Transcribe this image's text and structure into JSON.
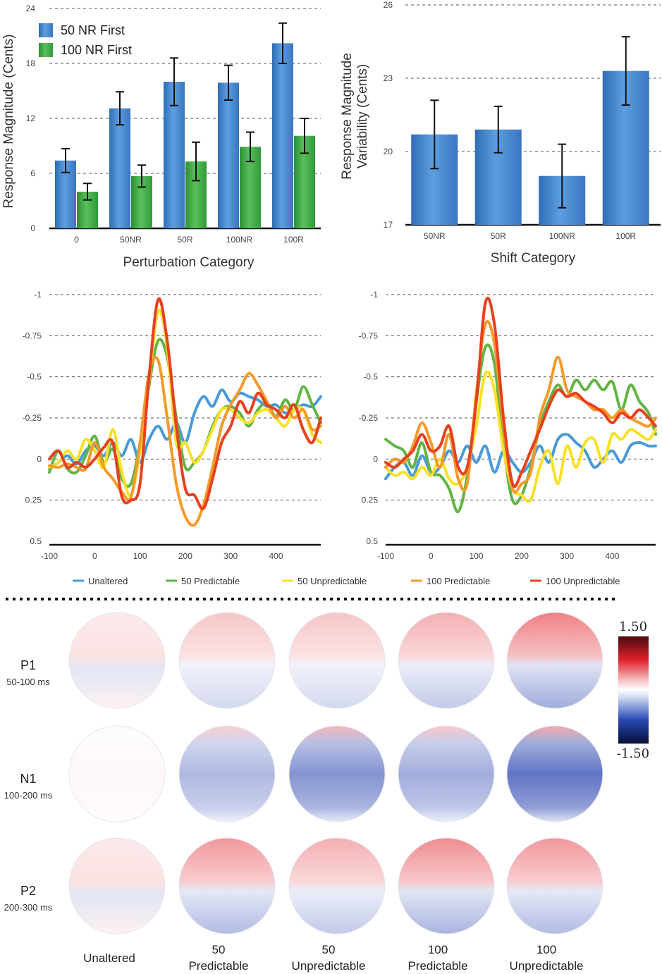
{
  "chart_data": [
    {
      "type": "bar",
      "ylabel": "Response Magnitude (Cents)",
      "xlabel": "Perturbation Category",
      "categories": [
        "0",
        "50NR",
        "50R",
        "100NR",
        "100R"
      ],
      "ylim": [
        0,
        24
      ],
      "yticks": [
        "0",
        "6",
        "12",
        "18",
        "24"
      ],
      "series": [
        {
          "name": "50 NR First",
          "color": "#3f83c8",
          "values": [
            7.4,
            13.1,
            16.0,
            15.9,
            20.2
          ],
          "errors": [
            1.3,
            1.8,
            2.6,
            1.9,
            2.2
          ]
        },
        {
          "name": "100 NR First",
          "color": "#3aa842",
          "values": [
            4.0,
            5.7,
            7.3,
            8.9,
            10.1
          ],
          "errors": [
            0.9,
            1.2,
            2.1,
            1.6,
            1.9
          ]
        }
      ],
      "grid": true,
      "legend": "top-left"
    },
    {
      "type": "bar",
      "ylabel": "Response Magnitude Variability (Cents)",
      "ylabel_lines": [
        "Response Magnitude",
        "Variability (Cents)"
      ],
      "xlabel": "Shift Category",
      "categories": [
        "50NR",
        "50R",
        "100NR",
        "100R"
      ],
      "ylim": [
        17,
        26
      ],
      "yticks": [
        "17",
        "20",
        "23",
        "26"
      ],
      "series": [
        {
          "color": "#3f83c8",
          "values": [
            20.7,
            20.9,
            19.0,
            23.3
          ],
          "errors": [
            1.4,
            0.95,
            1.3,
            1.4
          ]
        }
      ],
      "grid": true
    },
    {
      "type": "line",
      "xlim": [
        -100,
        500
      ],
      "xticks": [
        "-100",
        "0",
        "100",
        "200",
        "300",
        "400"
      ],
      "ylim": [
        -1,
        0.5
      ],
      "yticks": [
        "-1",
        "-0.75",
        "-0.5",
        "-0.25",
        "0",
        "0.25",
        "0.5"
      ],
      "y_inverted": true,
      "x": [
        -100,
        -80,
        -60,
        -40,
        -20,
        0,
        20,
        40,
        60,
        80,
        100,
        120,
        140,
        160,
        180,
        200,
        220,
        240,
        260,
        280,
        300,
        320,
        340,
        360,
        380,
        400,
        420,
        440,
        460,
        480,
        500
      ],
      "series": [
        {
          "name": "Unaltered",
          "color": "#4a9ad8",
          "values": [
            0.06,
            0.02,
            -0.02,
            0.03,
            -0.05,
            -0.08,
            -0.02,
            -0.1,
            -0.02,
            -0.12,
            0.02,
            -0.12,
            -0.2,
            -0.12,
            -0.22,
            -0.1,
            -0.28,
            -0.38,
            -0.32,
            -0.42,
            -0.35,
            -0.4,
            -0.38,
            -0.36,
            -0.32,
            -0.33,
            -0.28,
            -0.3,
            -0.33,
            -0.32,
            -0.38
          ]
        },
        {
          "name": "50 Predictable",
          "color": "#62b445",
          "values": [
            0.08,
            -0.05,
            0.06,
            0.08,
            -0.02,
            -0.14,
            0.02,
            -0.06,
            0.12,
            0.15,
            -0.1,
            -0.45,
            -0.72,
            -0.62,
            -0.25,
            0.05,
            0.02,
            -0.05,
            -0.2,
            -0.3,
            -0.32,
            -0.28,
            -0.2,
            -0.3,
            -0.34,
            -0.26,
            -0.36,
            -0.3,
            -0.44,
            -0.33,
            -0.22
          ]
        },
        {
          "name": "50 Unpredictable",
          "color": "#f8e126",
          "values": [
            0.05,
            0.02,
            -0.05,
            0.0,
            -0.12,
            -0.05,
            0.05,
            -0.18,
            0.08,
            0.22,
            -0.05,
            -0.48,
            -0.9,
            -0.68,
            -0.1,
            -0.1,
            0.02,
            -0.05,
            -0.18,
            -0.3,
            -0.3,
            -0.25,
            -0.22,
            -0.28,
            -0.3,
            -0.25,
            -0.2,
            -0.3,
            -0.3,
            -0.15,
            -0.1
          ]
        },
        {
          "name": "100 Predictable",
          "color": "#f49a2a",
          "values": [
            0.04,
            0.05,
            0.03,
            0.05,
            0.06,
            -0.1,
            0.05,
            0.12,
            0.2,
            0.23,
            -0.1,
            -0.52,
            -0.6,
            -0.25,
            0.15,
            0.35,
            0.4,
            0.28,
            0.05,
            -0.2,
            -0.33,
            -0.42,
            -0.52,
            -0.45,
            -0.35,
            -0.25,
            -0.32,
            -0.25,
            -0.3,
            -0.18,
            -0.2
          ]
        },
        {
          "name": "100 Unpredictable",
          "color": "#e8401f",
          "values": [
            0.0,
            -0.05,
            0.05,
            0.02,
            0.05,
            0.0,
            -0.07,
            -0.1,
            0.23,
            0.25,
            0.15,
            -0.5,
            -0.97,
            -0.72,
            -0.2,
            0.18,
            0.22,
            0.3,
            0.12,
            -0.1,
            -0.2,
            -0.35,
            -0.28,
            -0.4,
            -0.33,
            -0.3,
            -0.25,
            -0.33,
            -0.18,
            -0.1,
            -0.25
          ]
        }
      ],
      "grid": true
    },
    {
      "type": "line",
      "xlim": [
        -100,
        500
      ],
      "xticks": [
        "-100",
        "0",
        "100",
        "200",
        "300",
        "400"
      ],
      "ylim": [
        -1,
        0.5
      ],
      "yticks": [
        "-1",
        "-0.75",
        "-0.5",
        "-0.25",
        "0",
        "0.25",
        "0.5"
      ],
      "y_inverted": true,
      "x": [
        -100,
        -80,
        -60,
        -40,
        -20,
        0,
        20,
        40,
        60,
        80,
        100,
        120,
        140,
        160,
        180,
        200,
        220,
        240,
        260,
        280,
        300,
        320,
        340,
        360,
        380,
        400,
        420,
        440,
        460,
        480,
        500
      ],
      "series": [
        {
          "name": "Unaltered",
          "color": "#4a9ad8",
          "values": [
            0.12,
            0.05,
            0.02,
            0.1,
            -0.02,
            0.08,
            0.05,
            -0.05,
            0.02,
            -0.08,
            0.02,
            -0.08,
            0.08,
            -0.05,
            0.02,
            0.08,
            0.02,
            -0.08,
            0.02,
            -0.12,
            -0.15,
            -0.1,
            -0.05,
            0.05,
            0.0,
            -0.05,
            0.02,
            -0.08,
            -0.1,
            -0.08,
            -0.08
          ]
        },
        {
          "name": "50 Predictable",
          "color": "#62b445",
          "values": [
            -0.12,
            -0.08,
            -0.05,
            0.05,
            -0.1,
            0.08,
            0.1,
            0.18,
            0.32,
            0.1,
            -0.35,
            -0.68,
            -0.58,
            -0.08,
            0.25,
            0.22,
            0.05,
            -0.2,
            -0.35,
            -0.45,
            -0.38,
            -0.48,
            -0.42,
            -0.48,
            -0.42,
            -0.47,
            -0.3,
            -0.45,
            -0.35,
            -0.28,
            -0.15
          ]
        },
        {
          "name": "50 Unpredictable",
          "color": "#f8e126",
          "values": [
            0.05,
            0.1,
            0.08,
            0.12,
            0.05,
            0.1,
            0.0,
            0.12,
            0.15,
            0.05,
            -0.2,
            -0.52,
            -0.42,
            -0.05,
            0.18,
            0.22,
            0.25,
            0.05,
            -0.05,
            0.15,
            -0.08,
            0.05,
            -0.1,
            -0.12,
            0.02,
            -0.15,
            -0.12,
            -0.18,
            -0.15,
            -0.12,
            -0.18
          ]
        },
        {
          "name": "100 Predictable",
          "color": "#f49a2a",
          "values": [
            0.05,
            0.0,
            0.02,
            -0.08,
            -0.22,
            -0.1,
            0.05,
            -0.15,
            0.12,
            0.15,
            -0.4,
            -0.82,
            -0.7,
            -0.2,
            0.18,
            0.15,
            0.08,
            -0.25,
            -0.42,
            -0.62,
            -0.42,
            -0.38,
            -0.35,
            -0.3,
            -0.3,
            -0.25,
            -0.3,
            -0.25,
            -0.22,
            -0.2,
            -0.25
          ]
        },
        {
          "name": "100 Unpredictable",
          "color": "#e8401f",
          "values": [
            0.02,
            0.05,
            0.0,
            -0.05,
            -0.15,
            -0.05,
            -0.08,
            -0.2,
            0.05,
            0.05,
            -0.35,
            -0.95,
            -0.82,
            -0.25,
            0.15,
            0.08,
            -0.05,
            -0.18,
            -0.32,
            -0.42,
            -0.38,
            -0.4,
            -0.35,
            -0.32,
            -0.28,
            -0.22,
            -0.28,
            -0.25,
            -0.3,
            -0.25,
            -0.2
          ]
        }
      ],
      "grid": true
    },
    {
      "type": "heatmap",
      "kind": "topographic maps",
      "colorbar": {
        "max": "1.50",
        "min": "-1.50",
        "colors": [
          "#5a0a12",
          "#e01f2c",
          "#ffffff",
          "#2c4ab8",
          "#0b1547"
        ]
      },
      "rows": [
        {
          "label": "P1",
          "window": "50-100 ms"
        },
        {
          "label": "N1",
          "window": "100-200 ms"
        },
        {
          "label": "P2",
          "window": "200-300 ms"
        }
      ],
      "columns": [
        {
          "line1": "Unaltered",
          "line2": ""
        },
        {
          "line1": "50",
          "line2": "Predictable"
        },
        {
          "line1": "50",
          "line2": "Unpredictable"
        },
        {
          "line1": "100",
          "line2": "Predictable"
        },
        {
          "line1": "100",
          "line2": "Unpredictable"
        }
      ],
      "values": [
        [
          0.05,
          0.25,
          0.25,
          0.35,
          0.55
        ],
        [
          0.05,
          -0.55,
          -0.85,
          -0.65,
          -1.1
        ],
        [
          0.05,
          0.45,
          0.35,
          0.5,
          0.45
        ]
      ]
    }
  ]
}
